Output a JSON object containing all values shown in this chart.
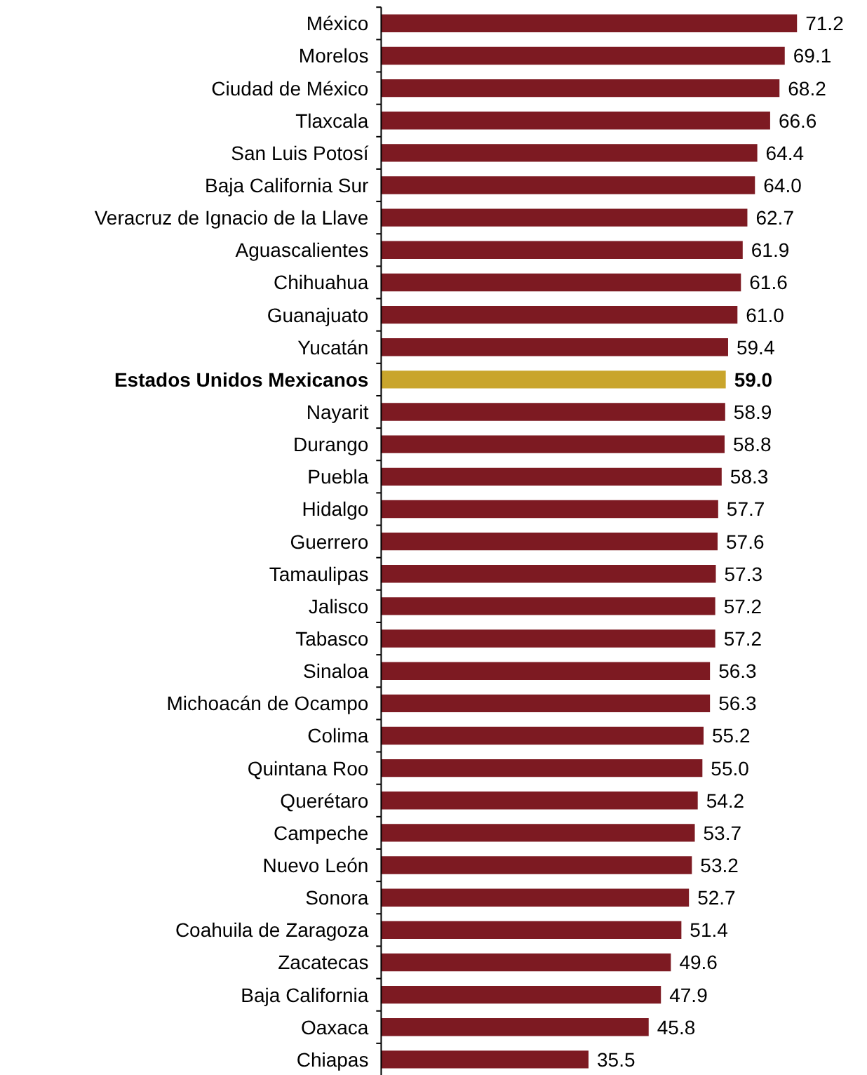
{
  "chart_data": {
    "type": "bar",
    "orientation": "horizontal",
    "tick_labels": "y",
    "categories": [
      "México",
      "Morelos",
      "Ciudad de México",
      "Tlaxcala",
      "San Luis Potosí",
      "Baja California Sur",
      "Veracruz de Ignacio de la Llave",
      "Aguascalientes",
      "Chihuahua",
      "Guanajuato",
      "Yucatán",
      "Estados Unidos Mexicanos",
      "Nayarit",
      "Durango",
      "Puebla",
      "Hidalgo",
      "Guerrero",
      "Tamaulipas",
      "Jalisco",
      "Tabasco",
      "Sinaloa",
      "Michoacán de Ocampo",
      "Colima",
      "Quintana Roo",
      "Querétaro",
      "Campeche",
      "Nuevo León",
      "Sonora",
      "Coahuila de Zaragoza",
      "Zacatecas",
      "Baja California",
      "Oaxaca",
      "Chiapas"
    ],
    "values": [
      71.2,
      69.1,
      68.2,
      66.6,
      64.4,
      64.0,
      62.7,
      61.9,
      61.6,
      61.0,
      59.4,
      59.0,
      58.9,
      58.8,
      58.3,
      57.7,
      57.6,
      57.3,
      57.2,
      57.2,
      56.3,
      56.3,
      55.2,
      55.0,
      54.2,
      53.7,
      53.2,
      52.7,
      51.4,
      49.6,
      47.9,
      45.8,
      35.5
    ],
    "value_labels": [
      "71.2",
      "69.1",
      "68.2",
      "66.6",
      "64.4",
      "64.0",
      "62.7",
      "61.9",
      "61.6",
      "61.0",
      "59.4",
      "59.0",
      "58.9",
      "58.8",
      "58.3",
      "57.7",
      "57.6",
      "57.3",
      "57.2",
      "57.2",
      "56.3",
      "56.3",
      "55.2",
      "55.0",
      "54.2",
      "53.7",
      "53.2",
      "52.7",
      "51.4",
      "49.6",
      "47.9",
      "45.8",
      "35.5"
    ],
    "colors": [
      "#7d1a22",
      "#7d1a22",
      "#7d1a22",
      "#7d1a22",
      "#7d1a22",
      "#7d1a22",
      "#7d1a22",
      "#7d1a22",
      "#7d1a22",
      "#7d1a22",
      "#7d1a22",
      "#c9a52c",
      "#7d1a22",
      "#7d1a22",
      "#7d1a22",
      "#7d1a22",
      "#7d1a22",
      "#7d1a22",
      "#7d1a22",
      "#7d1a22",
      "#7d1a22",
      "#7d1a22",
      "#7d1a22",
      "#7d1a22",
      "#7d1a22",
      "#7d1a22",
      "#7d1a22",
      "#7d1a22",
      "#7d1a22",
      "#7d1a22",
      "#7d1a22",
      "#7d1a22",
      "#7d1a22"
    ],
    "grid": false
  }
}
